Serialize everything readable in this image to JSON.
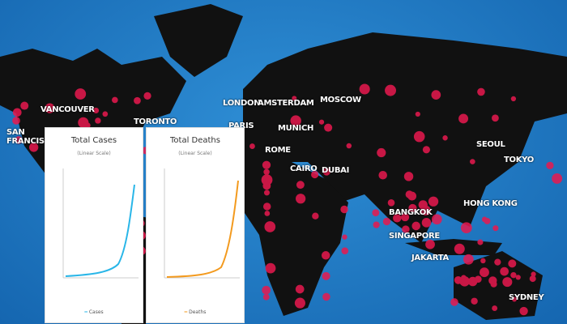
{
  "cities": [
    "VANCOUVER",
    "SAN FRANCISCO",
    "TORONTO",
    "LONDON",
    "AMSTERDAM",
    "MOSCOW",
    "PARIS",
    "MUNICH",
    "ROME",
    "CAIRO",
    "DUBAI",
    "SEOUL",
    "TOKYO",
    "HONG KONG",
    "BANGKOK",
    "SINGAPORE",
    "JAKARTA",
    "SYDNEY"
  ],
  "charts": [
    {
      "title": "Total Cases",
      "subtitle": "(Linear Scale)",
      "legend": "Cases"
    },
    {
      "title": "Total Deaths",
      "subtitle": "(Linear Scale)",
      "legend": "Deaths"
    }
  ]
}
